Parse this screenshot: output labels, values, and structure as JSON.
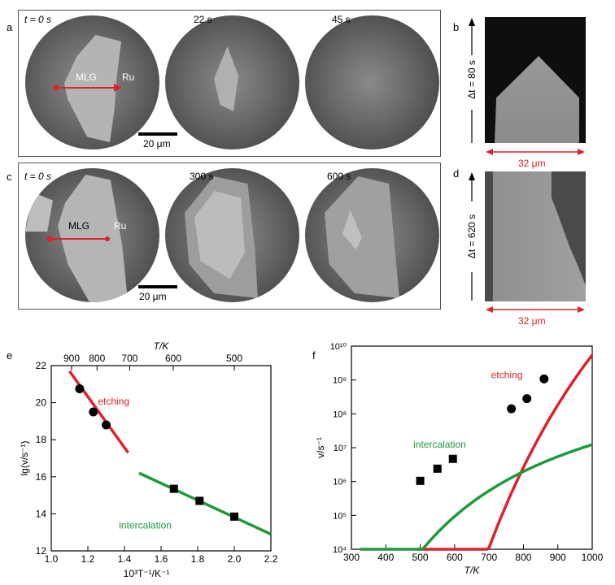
{
  "figure": {
    "panels": {
      "a": {
        "label": "a",
        "times": [
          "t = 0 s",
          "22 s",
          "45 s"
        ],
        "region_left": "MLG",
        "region_right": "Ru",
        "scale_bar": "20 μm"
      },
      "b": {
        "label": "b",
        "duration": "Δt = 80 s",
        "width": "32 μm"
      },
      "c": {
        "label": "c",
        "times": [
          "t = 0 s",
          "300 s",
          "600 s"
        ],
        "region_left": "MLG",
        "region_right": "Ru",
        "scale_bar": "20 μm"
      },
      "d": {
        "label": "d",
        "duration": "Δt = 620 s",
        "width": "32 μm"
      }
    }
  },
  "chart_data": [
    {
      "panel": "e",
      "type": "line",
      "ylabel": "lg(v/s⁻¹)",
      "xlabel": "10³T⁻¹/K⁻¹",
      "top_axis_label": "T/K",
      "xlim": [
        1.0,
        2.2
      ],
      "ylim": [
        12,
        22
      ],
      "x_ticks": [
        "1.0",
        "1.2",
        "1.4",
        "1.6",
        "1.8",
        "2.0",
        "2.2"
      ],
      "y_ticks": [
        "12",
        "14",
        "16",
        "18",
        "20",
        "22"
      ],
      "top_ticks": [
        "900",
        "800",
        "700",
        "600",
        "500"
      ],
      "series": [
        {
          "name": "etching",
          "color": "#e0202a",
          "line": [
            [
              1.1,
              21.7
            ],
            [
              1.42,
              17.3
            ]
          ],
          "points": [
            [
              1.155,
              20.75
            ],
            [
              1.23,
              19.5
            ],
            [
              1.3,
              18.8
            ]
          ],
          "marker": "circle"
        },
        {
          "name": "intercalation",
          "color": "#1e9a3c",
          "line": [
            [
              1.48,
              16.2
            ],
            [
              2.2,
              12.9
            ]
          ],
          "points": [
            [
              1.67,
              15.35
            ],
            [
              1.81,
              14.7
            ],
            [
              2.0,
              13.85
            ]
          ],
          "marker": "square"
        }
      ]
    },
    {
      "panel": "f",
      "type": "line",
      "ylabel": "v/s⁻¹",
      "xlabel": "T/K",
      "xlim": [
        300,
        1000
      ],
      "ylim_log10": [
        4,
        10
      ],
      "x_ticks": [
        "300",
        "400",
        "500",
        "600",
        "700",
        "800",
        "900",
        "1000"
      ],
      "y_ticks": [
        "10⁴",
        "10⁵",
        "10⁶",
        "10⁷",
        "10⁸",
        "10⁹",
        "10¹⁰"
      ],
      "series": [
        {
          "name": "etching",
          "color": "#e0202a",
          "a": 23.03,
          "b": 13290,
          "tmin": 490,
          "points": [
            [
              765,
              8.15
            ],
            [
              810,
              8.45
            ],
            [
              860,
              9.03
            ]
          ],
          "marker": "circle"
        },
        {
          "name": "intercalation",
          "color": "#1e9a3c",
          "a": 10.27,
          "b": 3180,
          "tmin": 325,
          "points": [
            [
              500,
              6.02
            ],
            [
              550,
              6.38
            ],
            [
              595,
              6.67
            ]
          ],
          "marker": "square"
        }
      ]
    }
  ]
}
